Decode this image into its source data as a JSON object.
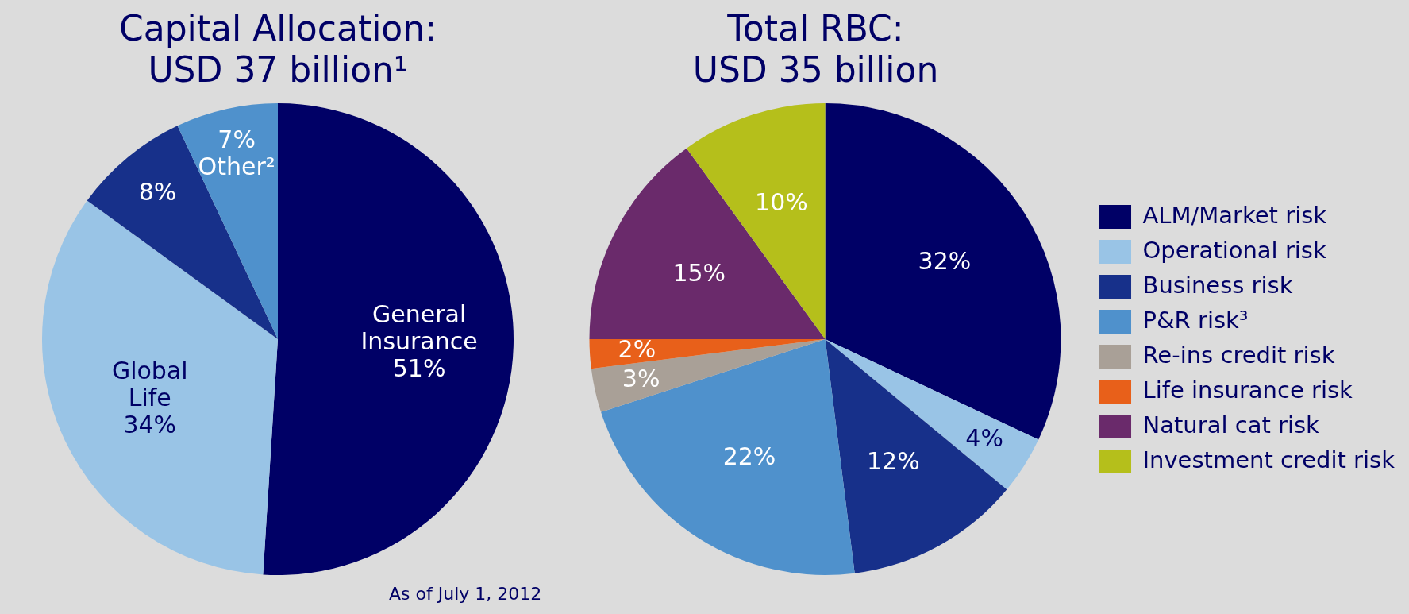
{
  "chart_data": [
    {
      "type": "pie",
      "title": "Capital Allocation:\nUSD 37 billion¹",
      "categories": [
        "General Insurance",
        "Global Life",
        null,
        "Other²"
      ],
      "values": [
        51,
        34,
        8,
        7
      ],
      "colors": [
        "#000066",
        "#99c4e6",
        "#17308a",
        "#4f91cc"
      ],
      "value_labels": [
        "51%",
        "34%",
        "8%",
        "7%"
      ],
      "legend": false,
      "annotations": [
        "As of July 1, 2012"
      ]
    },
    {
      "type": "pie",
      "title": "Total RBC:\nUSD 35 billion",
      "categories": [
        "ALM/Market risk",
        "Operational risk",
        "Business risk",
        "P&R risk³",
        "Re-ins credit risk",
        "Life insurance risk",
        "Natural cat risk",
        "Investment credit risk"
      ],
      "values": [
        32,
        4,
        12,
        22,
        3,
        2,
        15,
        10
      ],
      "colors": [
        "#000066",
        "#99c4e6",
        "#17308a",
        "#4f91cc",
        "#a9a097",
        "#e8601a",
        "#6a2a6b",
        "#b5bf1b"
      ],
      "value_labels": [
        "32%",
        "4%",
        "12%",
        "22%",
        "3%",
        "2%",
        "15%",
        "10%"
      ],
      "legend": "right"
    }
  ]
}
